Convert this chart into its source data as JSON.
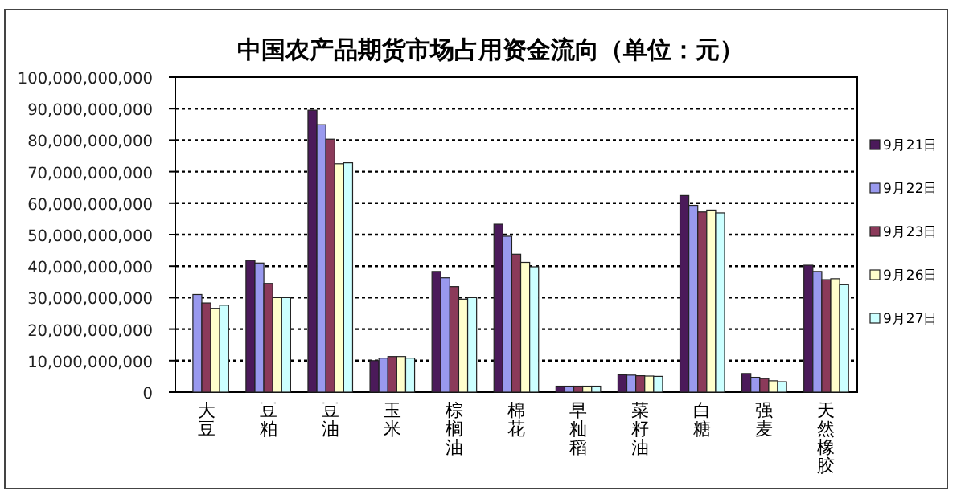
{
  "chart_data": {
    "type": "bar",
    "title": "中国农产品期货市场占用资金流向（单位：元）",
    "categories": [
      "大豆",
      "豆粕",
      "豆油",
      "玉米",
      "棕榈油",
      "棉花",
      "早籼稻",
      "菜籽油",
      "白糖",
      "强麦",
      "天然橡胶"
    ],
    "series": [
      {
        "name": "9月21日",
        "color": "#4b1a5a",
        "values": [
          null,
          41800000000,
          89500000000,
          10000000000,
          38300000000,
          53300000000,
          1900000000,
          5500000000,
          62400000000,
          5900000000,
          40300000000
        ]
      },
      {
        "name": "9月22日",
        "color": "#9999ee",
        "values": [
          31000000000,
          41000000000,
          84900000000,
          10800000000,
          36300000000,
          49500000000,
          1900000000,
          5400000000,
          59300000000,
          4700000000,
          38300000000
        ]
      },
      {
        "name": "9月23日",
        "color": "#8b3a5a",
        "values": [
          28300000000,
          34500000000,
          80300000000,
          11300000000,
          33500000000,
          43800000000,
          1900000000,
          5200000000,
          57200000000,
          4300000000,
          35700000000
        ]
      },
      {
        "name": "9月26日",
        "color": "#ffffcc",
        "values": [
          26600000000,
          30000000000,
          72500000000,
          11300000000,
          29500000000,
          41200000000,
          1900000000,
          5100000000,
          57800000000,
          3600000000,
          36000000000
        ]
      },
      {
        "name": "9月27日",
        "color": "#ccffff",
        "values": [
          27600000000,
          30000000000,
          72800000000,
          10800000000,
          30000000000,
          39800000000,
          1900000000,
          5000000000,
          56900000000,
          3300000000,
          34100000000
        ]
      }
    ],
    "ylim": [
      0,
      100000000000
    ],
    "yticks": [
      0,
      {
        "value": 10000000000,
        "label": "10,000,000,000"
      },
      {
        "value": 20000000000,
        "label": "20,000,000,000"
      },
      {
        "value": 30000000000,
        "label": "30,000,000,000"
      },
      {
        "value": 40000000000,
        "label": "40,000,000,000"
      },
      {
        "value": 50000000000,
        "label": "50,000,000,000"
      },
      {
        "value": 60000000000,
        "label": "60,000,000,000"
      },
      {
        "value": 70000000000,
        "label": "70,000,000,000"
      },
      {
        "value": 80000000000,
        "label": "80,000,000,000"
      },
      {
        "value": 90000000000,
        "label": "90,000,000,000"
      },
      {
        "value": 100000000000,
        "label": "100,000,000,000"
      }
    ],
    "grid": "y",
    "legend": "right"
  }
}
